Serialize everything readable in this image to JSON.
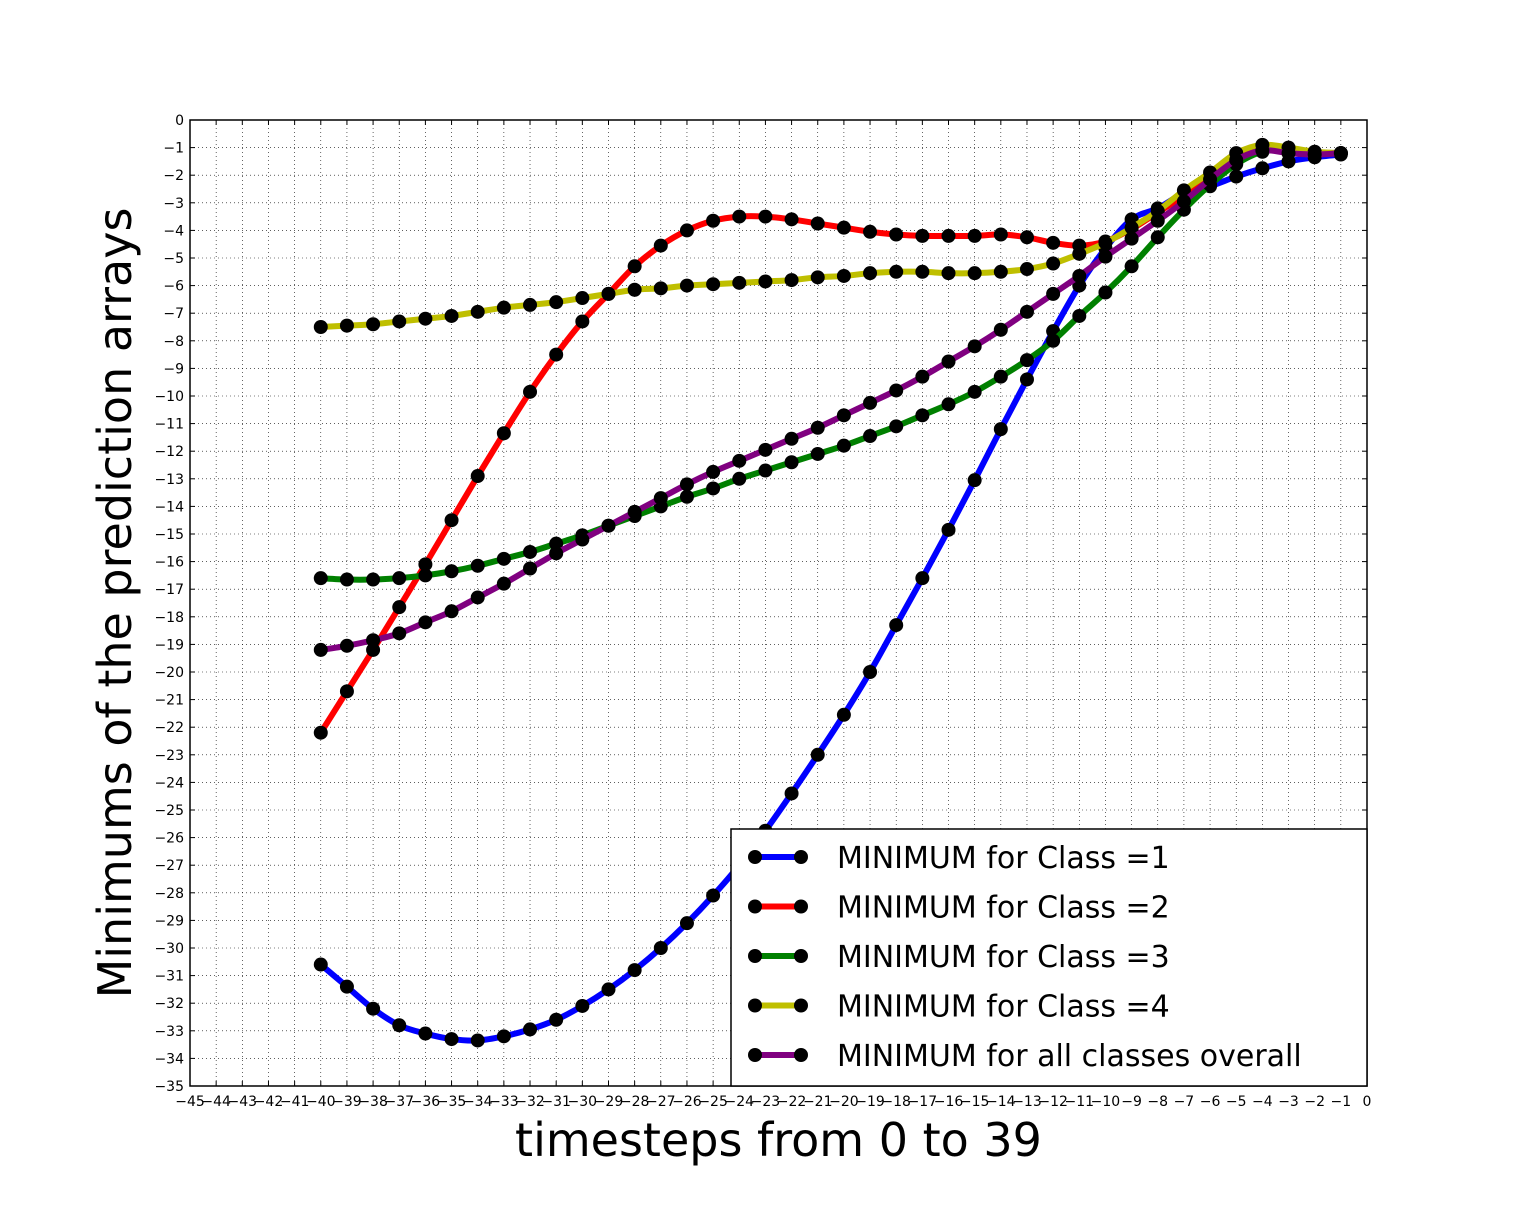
{
  "chart_data": {
    "type": "line",
    "xlabel": "timesteps from 0 to 39",
    "ylabel": "Minimums of the prediction arrays",
    "xlim": [
      -45,
      0
    ],
    "ylim": [
      -35,
      0
    ],
    "grid": true,
    "legend_position": "lower right",
    "x": [
      -40,
      -39,
      -38,
      -37,
      -36,
      -35,
      -34,
      -33,
      -32,
      -31,
      -30,
      -29,
      -28,
      -27,
      -26,
      -25,
      -24,
      -23,
      -22,
      -21,
      -20,
      -19,
      -18,
      -17,
      -16,
      -15,
      -14,
      -13,
      -12,
      -11,
      -10,
      -9,
      -8,
      -7,
      -6,
      -5,
      -4,
      -3,
      -2,
      -1
    ],
    "series": [
      {
        "name": "MINIMUM for Class =1",
        "color": "#0000ff",
        "values": [
          -30.6,
          -31.4,
          -32.2,
          -32.8,
          -33.1,
          -33.3,
          -33.35,
          -33.2,
          -32.95,
          -32.6,
          -32.1,
          -31.5,
          -30.8,
          -30.0,
          -29.1,
          -28.1,
          -27.0,
          -25.75,
          -24.4,
          -23.0,
          -21.55,
          -20.0,
          -18.3,
          -16.6,
          -14.85,
          -13.05,
          -11.2,
          -9.4,
          -7.65,
          -6.0,
          -4.65,
          -3.6,
          -3.2,
          -2.65,
          -2.4,
          -2.05,
          -1.75,
          -1.5,
          -1.35,
          -1.25
        ]
      },
      {
        "name": "MINIMUM for Class =2",
        "color": "#ff0000",
        "values": [
          -22.2,
          -20.7,
          -19.2,
          -17.65,
          -16.1,
          -14.5,
          -12.9,
          -11.35,
          -9.85,
          -8.5,
          -7.3,
          -6.3,
          -5.3,
          -4.55,
          -4.0,
          -3.65,
          -3.5,
          -3.5,
          -3.6,
          -3.75,
          -3.9,
          -4.05,
          -4.15,
          -4.2,
          -4.2,
          -4.2,
          -4.15,
          -4.25,
          -4.45,
          -4.55,
          -4.4,
          -3.95,
          -3.35,
          -2.75,
          -2.1,
          -1.45,
          -1.05,
          -1.1,
          -1.2,
          -1.2
        ]
      },
      {
        "name": "MINIMUM for Class =3",
        "color": "#008000",
        "values": [
          -16.6,
          -16.65,
          -16.65,
          -16.6,
          -16.5,
          -16.35,
          -16.15,
          -15.9,
          -15.65,
          -15.35,
          -15.05,
          -14.7,
          -14.35,
          -14.0,
          -13.65,
          -13.35,
          -13.0,
          -12.7,
          -12.4,
          -12.1,
          -11.8,
          -11.45,
          -11.1,
          -10.7,
          -10.3,
          -9.85,
          -9.3,
          -8.7,
          -8.0,
          -7.1,
          -6.25,
          -5.3,
          -4.25,
          -3.25,
          -2.35,
          -1.6,
          -1.15,
          -1.1,
          -1.2,
          -1.2
        ]
      },
      {
        "name": "MINIMUM for Class =4",
        "color": "#bfbf00",
        "values": [
          -7.5,
          -7.45,
          -7.4,
          -7.3,
          -7.2,
          -7.1,
          -6.95,
          -6.8,
          -6.7,
          -6.6,
          -6.45,
          -6.3,
          -6.15,
          -6.1,
          -6.0,
          -5.95,
          -5.9,
          -5.85,
          -5.8,
          -5.7,
          -5.65,
          -5.55,
          -5.5,
          -5.5,
          -5.55,
          -5.55,
          -5.5,
          -5.4,
          -5.2,
          -4.85,
          -4.45,
          -3.9,
          -3.3,
          -2.55,
          -1.9,
          -1.2,
          -0.9,
          -1.0,
          -1.15,
          -1.2
        ]
      },
      {
        "name": "MINIMUM for all classes overall",
        "color": "#800080",
        "values": [
          -19.2,
          -19.05,
          -18.85,
          -18.6,
          -18.2,
          -17.8,
          -17.3,
          -16.8,
          -16.25,
          -15.7,
          -15.2,
          -14.7,
          -14.2,
          -13.7,
          -13.2,
          -12.75,
          -12.35,
          -11.95,
          -11.55,
          -11.15,
          -10.7,
          -10.25,
          -9.8,
          -9.3,
          -8.75,
          -8.2,
          -7.6,
          -6.95,
          -6.3,
          -5.65,
          -4.95,
          -4.3,
          -3.65,
          -2.95,
          -2.15,
          -1.45,
          -1.1,
          -1.2,
          -1.25,
          -1.2
        ]
      }
    ]
  }
}
